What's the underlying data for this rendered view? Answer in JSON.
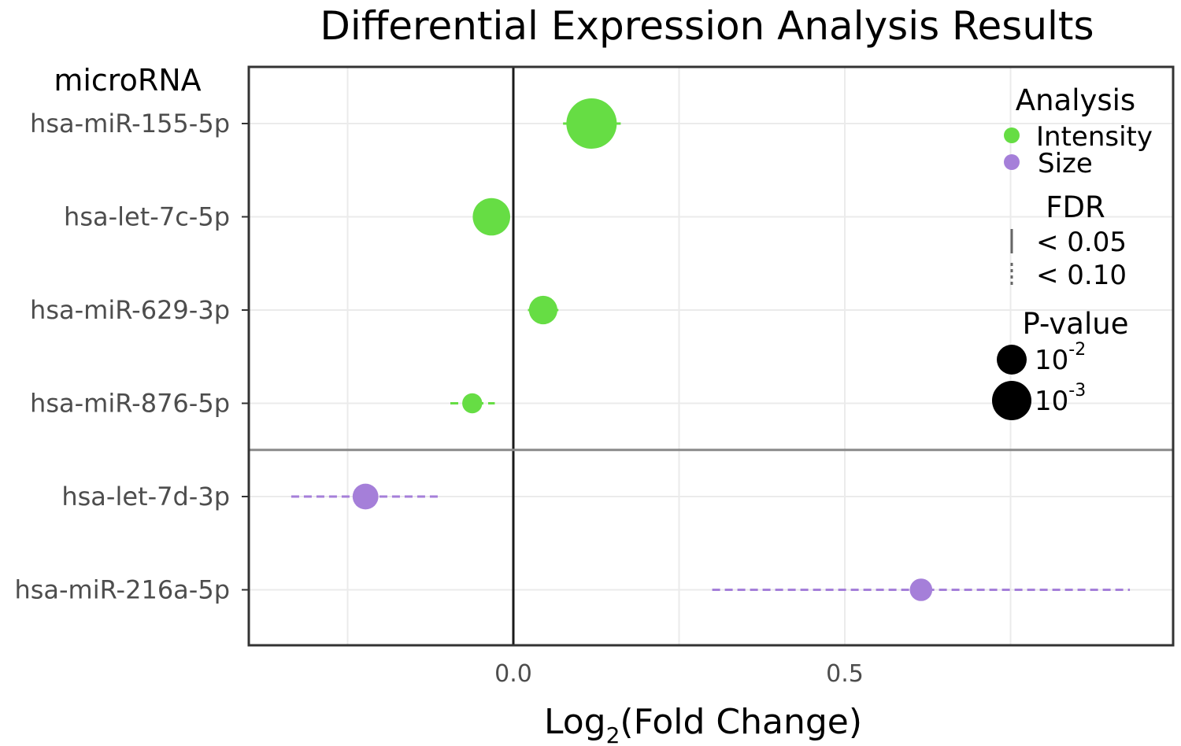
{
  "chart_data": {
    "type": "scatter",
    "title": "Differential Expression Analysis Results",
    "ylabel": "microRNA",
    "xlabel": "Log",
    "xlabel_sub": "2",
    "xlabel_suffix": "(Fold Change)",
    "xlim": [
      -0.4,
      0.98
    ],
    "xticks": [
      {
        "value": 0.0,
        "label": "0.0"
      },
      {
        "value": 0.5,
        "label": "0.5"
      }
    ],
    "x_minor_gridlines": [
      -0.25,
      0.25,
      0.75
    ],
    "categories": [
      "hsa-miR-155-5p",
      "hsa-let-7c-5p",
      "hsa-miR-629-3p",
      "hsa-miR-876-5p",
      "hsa-let-7d-3p",
      "hsa-miR-216a-5p"
    ],
    "group_separator_after_index": 3,
    "points": [
      {
        "label": "hsa-miR-155-5p",
        "analysis": "Intensity",
        "fdr": "< 0.05",
        "x": 0.118,
        "ci": [
          0.075,
          0.162
        ],
        "pvalue": 0.0003
      },
      {
        "label": "hsa-let-7c-5p",
        "analysis": "Intensity",
        "fdr": "< 0.05",
        "x": -0.033,
        "ci": [
          -0.055,
          -0.012
        ],
        "pvalue": 0.002
      },
      {
        "label": "hsa-miR-629-3p",
        "analysis": "Intensity",
        "fdr": "< 0.05",
        "x": 0.045,
        "ci": [
          0.022,
          0.068
        ],
        "pvalue": 0.008
      },
      {
        "label": "hsa-miR-876-5p",
        "analysis": "Intensity",
        "fdr": "< 0.10",
        "x": -0.062,
        "ci": [
          -0.095,
          -0.028
        ],
        "pvalue": 0.03
      },
      {
        "label": "hsa-let-7d-3p",
        "analysis": "Size",
        "fdr": "< 0.10",
        "x": -0.223,
        "ci": [
          -0.335,
          -0.11
        ],
        "pvalue": 0.012
      },
      {
        "label": "hsa-miR-216a-5p",
        "analysis": "Size",
        "fdr": "< 0.10",
        "x": 0.615,
        "ci": [
          0.3,
          0.93
        ],
        "pvalue": 0.02
      }
    ],
    "grid": true,
    "legend": {
      "placement": "top-right",
      "analysis": {
        "title": "Analysis",
        "items": [
          {
            "label": "Intensity",
            "color": "#66dd44"
          },
          {
            "label": "Size",
            "color": "#a57fd9"
          }
        ]
      },
      "fdr": {
        "title": "FDR",
        "items": [
          {
            "label": "< 0.05",
            "style": "solid"
          },
          {
            "label": "< 0.10",
            "style": "dashed"
          }
        ]
      },
      "pvalue": {
        "title": "P-value",
        "items": [
          {
            "base": "10",
            "exp": "-2",
            "value": 0.01
          },
          {
            "base": "10",
            "exp": "-3",
            "value": 0.001
          }
        ]
      }
    }
  }
}
